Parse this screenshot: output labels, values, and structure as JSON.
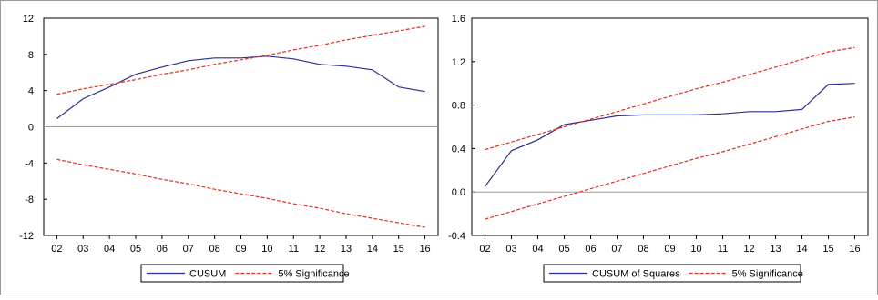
{
  "chart_data": [
    {
      "type": "line",
      "x": [
        "02",
        "03",
        "04",
        "05",
        "06",
        "07",
        "08",
        "09",
        "10",
        "11",
        "12",
        "13",
        "14",
        "15",
        "16"
      ],
      "ylim": [
        -12,
        12
      ],
      "yticks": [
        -12,
        -8,
        -4,
        0,
        4,
        8,
        12
      ],
      "ytick_labels": [
        "-12",
        "-8",
        "-4",
        "0",
        "4",
        "8",
        "12"
      ],
      "series": [
        {
          "name": "CUSUM",
          "color": "#2b2f8f",
          "style": "solid",
          "values": [
            0.9,
            3.1,
            4.4,
            5.8,
            6.6,
            7.3,
            7.6,
            7.6,
            7.8,
            7.5,
            6.9,
            6.7,
            6.3,
            4.4,
            3.9
          ]
        },
        {
          "name": "5% Significance",
          "color": "#e0301e",
          "style": "dashed",
          "values": [
            3.6,
            4.2,
            4.7,
            5.2,
            5.8,
            6.3,
            6.9,
            7.4,
            7.9,
            8.5,
            9.0,
            9.6,
            10.1,
            10.6,
            11.1
          ]
        },
        {
          "name": "",
          "color": "#e0301e",
          "style": "dashed",
          "values": [
            -3.6,
            -4.2,
            -4.7,
            -5.2,
            -5.8,
            -6.3,
            -6.9,
            -7.4,
            -7.9,
            -8.5,
            -9.0,
            -9.6,
            -10.1,
            -10.6,
            -11.1
          ]
        }
      ],
      "zero_line": true,
      "legend": {
        "position": "bottom-center",
        "labels": [
          "CUSUM",
          "5% Significance"
        ]
      }
    },
    {
      "type": "line",
      "x": [
        "02",
        "03",
        "04",
        "05",
        "06",
        "07",
        "08",
        "09",
        "10",
        "11",
        "12",
        "13",
        "14",
        "15",
        "16"
      ],
      "ylim": [
        -0.4,
        1.6
      ],
      "yticks": [
        -0.4,
        0.0,
        0.4,
        0.8,
        1.2,
        1.6
      ],
      "ytick_labels": [
        "-0.4",
        "0.0",
        "0.4",
        "0.8",
        "1.2",
        "1.6"
      ],
      "series": [
        {
          "name": "CUSUM of Squares",
          "color": "#2b2f8f",
          "style": "solid",
          "values": [
            0.05,
            0.38,
            0.48,
            0.62,
            0.66,
            0.7,
            0.71,
            0.71,
            0.71,
            0.72,
            0.74,
            0.74,
            0.76,
            0.99,
            1.0
          ]
        },
        {
          "name": "5% Significance",
          "color": "#e0301e",
          "style": "dashed",
          "values": [
            0.39,
            0.46,
            0.53,
            0.6,
            0.67,
            0.74,
            0.81,
            0.88,
            0.95,
            1.01,
            1.08,
            1.15,
            1.22,
            1.29,
            1.33
          ]
        },
        {
          "name": "",
          "color": "#e0301e",
          "style": "dashed",
          "values": [
            -0.25,
            -0.18,
            -0.11,
            -0.04,
            0.03,
            0.1,
            0.17,
            0.24,
            0.31,
            0.37,
            0.44,
            0.51,
            0.58,
            0.65,
            0.69
          ]
        }
      ],
      "zero_line": true,
      "legend": {
        "position": "bottom-center",
        "labels": [
          "CUSUM of Squares",
          "5% Significance"
        ]
      }
    }
  ]
}
